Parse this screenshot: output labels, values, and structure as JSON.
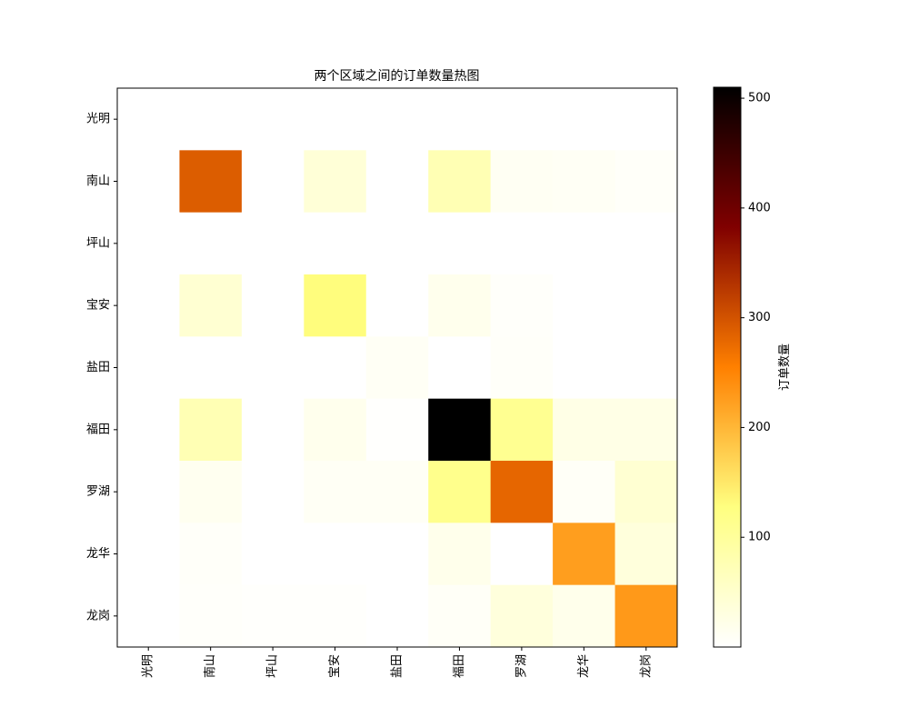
{
  "chart_data": {
    "type": "heatmap",
    "title": "两个区域之间的订单数量热图",
    "xlabel": "",
    "ylabel": "",
    "x_categories": [
      "光明",
      "南山",
      "坪山",
      "宝安",
      "盐田",
      "福田",
      "罗湖",
      "龙华",
      "龙岗"
    ],
    "y_categories": [
      "光明",
      "南山",
      "坪山",
      "宝安",
      "盐田",
      "福田",
      "罗湖",
      "龙华",
      "龙岗"
    ],
    "values": [
      [
        0,
        0,
        0,
        0,
        0,
        0,
        0,
        0,
        0
      ],
      [
        0,
        290,
        0,
        40,
        0,
        75,
        12,
        10,
        6
      ],
      [
        0,
        0,
        0,
        0,
        0,
        0,
        0,
        0,
        0
      ],
      [
        0,
        45,
        0,
        130,
        0,
        18,
        5,
        0,
        0
      ],
      [
        0,
        0,
        0,
        0,
        10,
        0,
        6,
        0,
        0
      ],
      [
        0,
        75,
        0,
        18,
        2,
        510,
        110,
        25,
        25
      ],
      [
        0,
        15,
        0,
        10,
        10,
        115,
        280,
        8,
        45
      ],
      [
        0,
        6,
        0,
        0,
        0,
        20,
        0,
        225,
        35
      ],
      [
        0,
        5,
        3,
        3,
        0,
        8,
        35,
        20,
        230
      ]
    ],
    "colormap": "afmhot_r",
    "colorbar": {
      "label": "订单数量",
      "range": [
        0,
        510
      ],
      "ticks": [
        100,
        200,
        300,
        400,
        500
      ]
    },
    "grid": false
  }
}
